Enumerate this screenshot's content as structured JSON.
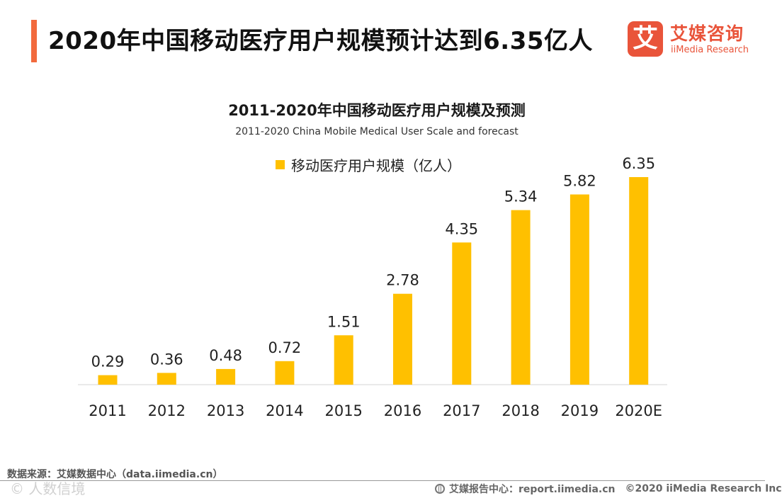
{
  "header": {
    "title": "2020年中国移动医疗用户规模预计达到6.35亿人"
  },
  "brand": {
    "badge": "艾",
    "name_cn": "艾媒咨询",
    "name_en": "iiMedia Research"
  },
  "chart_data": {
    "type": "bar",
    "title": "2011-2020年中国移动医疗用户规模及预测",
    "subtitle": "2011-2020 China Mobile Medical User Scale and forecast",
    "categories": [
      "2011",
      "2012",
      "2013",
      "2014",
      "2015",
      "2016",
      "2017",
      "2018",
      "2019",
      "2020E"
    ],
    "series": [
      {
        "name": "移动医疗用户规模（亿人）",
        "values": [
          0.29,
          0.36,
          0.48,
          0.72,
          1.51,
          2.78,
          4.35,
          5.34,
          5.82,
          6.35
        ],
        "color": "#ffc000"
      }
    ],
    "data_labels": [
      "0.29",
      "0.36",
      "0.48",
      "0.72",
      "1.51",
      "2.78",
      "4.35",
      "5.34",
      "5.82",
      "6.35"
    ],
    "ylim": [
      0,
      7
    ],
    "grid": false,
    "legend_position": "top-center"
  },
  "footer": {
    "source": "数据来源：艾媒数据中心（data.iimedia.cn）",
    "report": "艾媒报告中心：report.iimedia.cn",
    "copyright": "©2020 iiMedia Research Inc",
    "watermark": "© 人数信境"
  }
}
